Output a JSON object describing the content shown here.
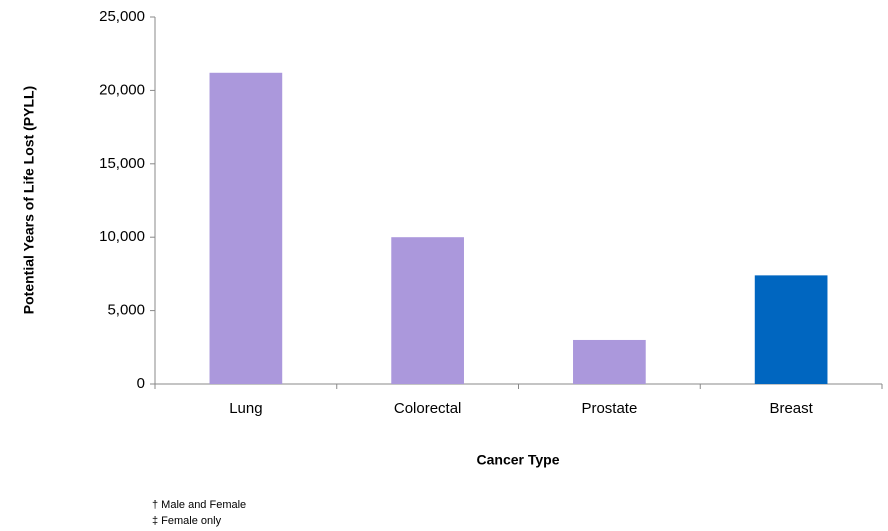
{
  "chart_data": {
    "type": "bar",
    "y_label": "Potential Years of Life Lost (PYLL)",
    "x_label": "Cancer Type",
    "categories": [
      "Lung",
      "Colorectal",
      "Prostate",
      "Breast"
    ],
    "values": [
      21200,
      10000,
      3000,
      7400
    ],
    "colors": [
      "#ab98dc",
      "#ab98dc",
      "#ab98dc",
      "#0066c0"
    ],
    "ylim": [
      0,
      25000
    ],
    "yticks": [
      0,
      {
        "value": 5000,
        "label": "5,000"
      },
      {
        "value": 10000,
        "label": "10,000"
      },
      {
        "value": 15000,
        "label": "15,000"
      },
      {
        "value": 20000,
        "label": "20,000"
      },
      {
        "value": 25000,
        "label": "25,000"
      }
    ],
    "grid": false,
    "footnotes": [
      "† Male and Female",
      "‡ Female only"
    ]
  }
}
